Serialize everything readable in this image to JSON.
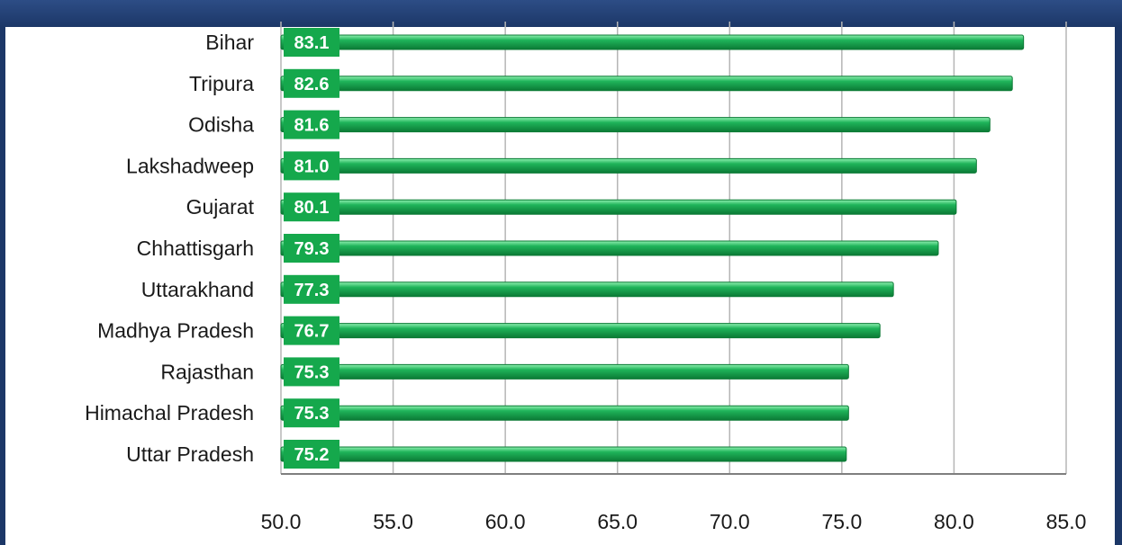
{
  "chart_data": {
    "type": "bar",
    "orientation": "horizontal",
    "title": "",
    "xlabel": "",
    "ylabel": "",
    "categories": [
      "Bihar",
      "Tripura",
      "Odisha",
      "Lakshadweep",
      "Gujarat",
      "Chhattisgarh",
      "Uttarakhand",
      "Madhya Pradesh",
      "Rajasthan",
      "Himachal Pradesh",
      "Uttar Pradesh"
    ],
    "values": [
      83.1,
      82.6,
      81.6,
      81.0,
      80.1,
      79.3,
      77.3,
      76.7,
      75.3,
      75.3,
      75.2
    ],
    "value_labels": [
      "83.1",
      "82.6",
      "81.6",
      "81.0",
      "80.1",
      "79.3",
      "77.3",
      "76.7",
      "75.3",
      "75.3",
      "75.2"
    ],
    "xlim": [
      50.0,
      85.0
    ],
    "xticks": [
      50.0,
      55.0,
      60.0,
      65.0,
      70.0,
      75.0,
      80.0,
      85.0
    ],
    "xtick_labels": [
      "50.0",
      "55.0",
      "60.0",
      "65.0",
      "70.0",
      "75.0",
      "80.0",
      "85.0"
    ],
    "grid": true,
    "legend": "none",
    "colors": {
      "bar": "#1fb45a",
      "bar_highlight": "#8ff0b0",
      "bar_shadow": "#0b7a35",
      "label_box": "#15a84c",
      "grid": "#b5b5b5",
      "frame": "#1c3767"
    }
  }
}
